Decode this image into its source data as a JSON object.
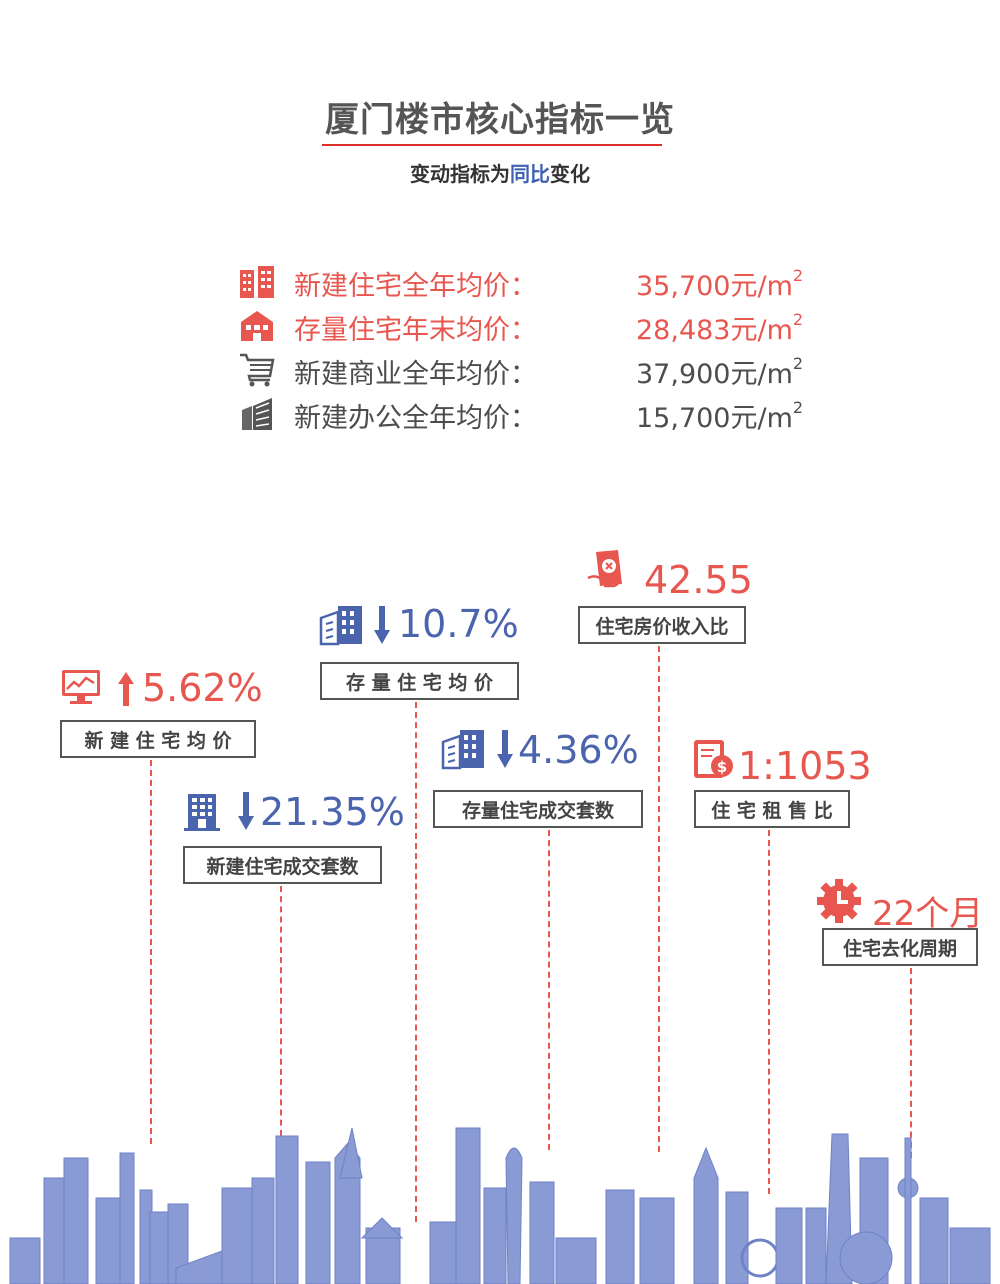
{
  "header": {
    "title": "厦门楼市核心指标一览",
    "subtitle_pre": "变动指标为",
    "subtitle_hl": "同比",
    "subtitle_post": "变化"
  },
  "prices": [
    {
      "label": "新建住宅全年均价：",
      "value": "35,700元/m",
      "sup": "2",
      "icon": "building-icon",
      "color": "#e8574f"
    },
    {
      "label": "存量住宅年末均价：",
      "value": "28,483元/m",
      "sup": "2",
      "icon": "house-icon",
      "color": "#e8574f"
    },
    {
      "label": "新建商业全年均价：",
      "value": "37,900元/m",
      "sup": "2",
      "icon": "shopping-cart-icon",
      "color": "#4d4d4d"
    },
    {
      "label": "新建办公全年均价：",
      "value": "15,700元/m",
      "sup": "2",
      "icon": "office-building-icon",
      "color": "#4d4d4d"
    }
  ],
  "stats": {
    "new_home_price": {
      "value": "5.62%",
      "label": "新 建 住 宅 均 价",
      "direction": "up",
      "icon": "monitor-chart-icon"
    },
    "new_home_volume": {
      "value": "21.35%",
      "label": "新建住宅成交套数",
      "direction": "down",
      "icon": "apartment-icon"
    },
    "existing_price": {
      "value": "10.7%",
      "label": "存 量 住 宅 均 价",
      "direction": "down",
      "icon": "city-buildings-icon"
    },
    "existing_volume": {
      "value": "4.36%",
      "label": "存量住宅成交套数",
      "direction": "down",
      "icon": "city-buildings-icon"
    },
    "price_income_ratio": {
      "value": "42.55",
      "label": "住宅房价收入比",
      "icon": "money-card-icon"
    },
    "rent_sale_ratio": {
      "value": "1:1053",
      "label": "住 宅 租 售 比",
      "icon": "document-dollar-icon"
    },
    "destock_cycle": {
      "value": "22个月",
      "label": "住宅去化周期",
      "icon": "gear-clock-icon"
    }
  },
  "colors": {
    "accent_red": "#e8574f",
    "accent_blue": "#4a64ad",
    "skyline": "#7f93cf"
  }
}
